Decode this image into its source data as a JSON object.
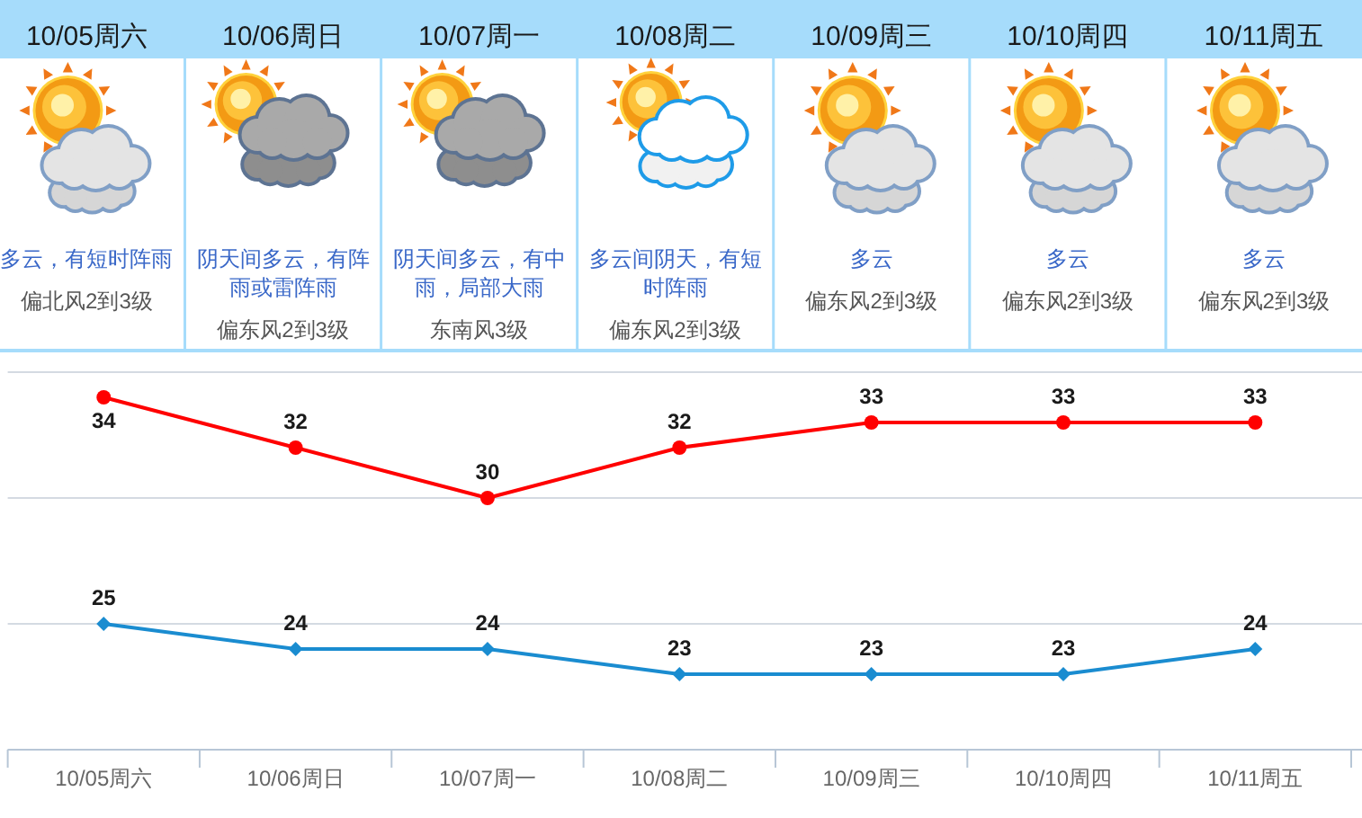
{
  "chart_data": [
    {
      "type": "other",
      "categories": [
        "10/05周六",
        "10/06周日",
        "10/07周一",
        "10/08周二",
        "10/09周三",
        "10/10周四",
        "10/11周五"
      ],
      "annotations": [
        "多云，有短时阵雨",
        "偏北风2到3级",
        "阴天间多云，有阵雨或雷阵雨",
        "偏东风2到3级",
        "阴天间多云，有中雨，局部大雨",
        "东南风3级",
        "多云间阴天，有短时阵雨",
        "偏东风2到3级",
        "多云",
        "偏东风2到3级",
        "多云",
        "偏东风2到3级",
        "多云",
        "偏东风2到3级"
      ]
    },
    {
      "type": "line",
      "categories": [
        "10/05周六",
        "10/06周日",
        "10/07周一",
        "10/08周二",
        "10/09周三",
        "10/10周四",
        "10/11周五"
      ],
      "series": [
        {
          "color": "#ff0000",
          "marker": "circle",
          "values": [
            34,
            32,
            30,
            32,
            33,
            33,
            33
          ]
        },
        {
          "color": "#1a8cd0",
          "marker": "diamond",
          "values": [
            25,
            24,
            24,
            23,
            23,
            23,
            24
          ]
        }
      ],
      "ylim": [
        20,
        35
      ],
      "yticks": [
        {
          "value": 20,
          "label": null
        },
        {
          "value": 25,
          "label": null
        },
        {
          "value": 30,
          "label": null
        },
        {
          "value": 35,
          "label": null
        }
      ],
      "grid": "y",
      "tick_labels": "x",
      "data_labels": true
    }
  ]
}
